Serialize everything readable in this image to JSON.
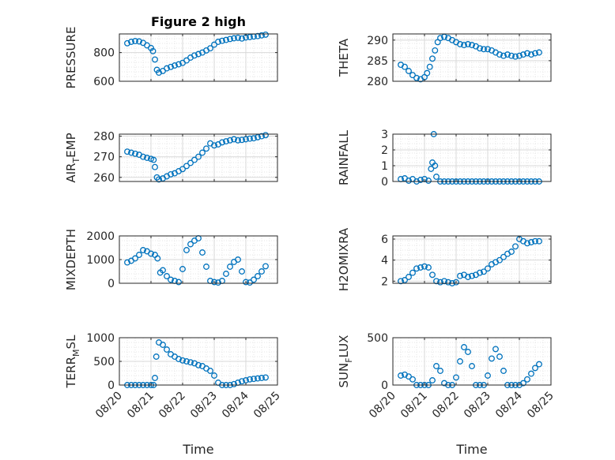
{
  "figure_title": "Figure 2 high",
  "colors": {
    "marker": "#0072BD",
    "axis": "#262626",
    "grid": "#d9d9d9"
  },
  "chart_data": [
    {
      "type": "scatter",
      "title": "Figure 2 high",
      "ylabel": "PRESSURE",
      "xlim": [
        "08/20",
        "08/25"
      ],
      "ylim": [
        600,
        930
      ],
      "yticks": [
        600,
        800
      ],
      "xtick_labels": [
        "08/20",
        "08/21",
        "08/22",
        "08/23",
        "08/24",
        "08/25"
      ],
      "show_xticklabels": false,
      "grid": true,
      "x": [
        "08/20 06:00",
        "08/20 09:00",
        "08/20 12:00",
        "08/20 15:00",
        "08/20 18:00",
        "08/20 21:00",
        "08/21 00:00",
        "08/21 01:30",
        "08/21 03:00",
        "08/21 04:30",
        "08/21 06:00",
        "08/21 09:00",
        "08/21 12:00",
        "08/21 15:00",
        "08/21 18:00",
        "08/21 21:00",
        "08/22 00:00",
        "08/22 03:00",
        "08/22 06:00",
        "08/22 09:00",
        "08/22 12:00",
        "08/22 15:00",
        "08/22 18:00",
        "08/22 21:00",
        "08/23 00:00",
        "08/23 03:00",
        "08/23 06:00",
        "08/23 09:00",
        "08/23 12:00",
        "08/23 15:00",
        "08/23 18:00",
        "08/23 21:00",
        "08/24 00:00",
        "08/24 03:00",
        "08/24 06:00",
        "08/24 09:00",
        "08/24 12:00",
        "08/24 15:00"
      ],
      "values": [
        865,
        875,
        880,
        878,
        868,
        850,
        832,
        810,
        752,
        680,
        660,
        672,
        690,
        700,
        710,
        718,
        728,
        745,
        765,
        780,
        790,
        800,
        815,
        830,
        855,
        875,
        882,
        888,
        895,
        900,
        903,
        898,
        905,
        908,
        912,
        915,
        920,
        925
      ]
    },
    {
      "type": "scatter",
      "ylabel": "THETA",
      "xlim": [
        "08/20",
        "08/25"
      ],
      "ylim": [
        280,
        291.5
      ],
      "yticks": [
        280,
        285,
        290
      ],
      "xtick_labels": [
        "08/20",
        "08/21",
        "08/22",
        "08/23",
        "08/24",
        "08/25"
      ],
      "show_xticklabels": false,
      "grid": true,
      "x": [
        "08/20 06:00",
        "08/20 09:00",
        "08/20 12:00",
        "08/20 15:00",
        "08/20 18:00",
        "08/20 21:00",
        "08/21 00:00",
        "08/21 02:00",
        "08/21 04:00",
        "08/21 06:00",
        "08/21 08:00",
        "08/21 10:00",
        "08/21 12:00",
        "08/21 15:00",
        "08/21 18:00",
        "08/21 21:00",
        "08/22 00:00",
        "08/22 03:00",
        "08/22 06:00",
        "08/22 09:00",
        "08/22 12:00",
        "08/22 15:00",
        "08/22 18:00",
        "08/22 21:00",
        "08/23 00:00",
        "08/23 03:00",
        "08/23 06:00",
        "08/23 09:00",
        "08/23 12:00",
        "08/23 15:00",
        "08/23 18:00",
        "08/23 21:00",
        "08/24 00:00",
        "08/24 03:00",
        "08/24 06:00",
        "08/24 09:00",
        "08/24 12:00",
        "08/24 15:00"
      ],
      "values": [
        284,
        283.5,
        282.5,
        281.5,
        280.8,
        280.5,
        281,
        282,
        283.5,
        285.5,
        287.5,
        289.5,
        290.5,
        290.8,
        290.5,
        290,
        289.5,
        289,
        288.8,
        289,
        288.8,
        288.5,
        288,
        287.8,
        287.8,
        287.5,
        287,
        286.5,
        286.2,
        286.5,
        286.2,
        286,
        286.2,
        286.5,
        286.8,
        286.5,
        286.8,
        287
      ]
    },
    {
      "type": "scatter",
      "ylabel": "AIR_TEMP",
      "ylabel_display": {
        "base": "AIR",
        "sub": "T",
        "rest": "EMP"
      },
      "xlim": [
        "08/20",
        "08/25"
      ],
      "ylim": [
        258,
        281
      ],
      "yticks": [
        260,
        270,
        280
      ],
      "xtick_labels": [
        "08/20",
        "08/21",
        "08/22",
        "08/23",
        "08/24",
        "08/25"
      ],
      "show_xticklabels": false,
      "grid": true,
      "x": [
        "08/20 06:00",
        "08/20 09:00",
        "08/20 12:00",
        "08/20 15:00",
        "08/20 18:00",
        "08/20 21:00",
        "08/21 00:00",
        "08/21 02:00",
        "08/21 03:00",
        "08/21 04:30",
        "08/21 06:00",
        "08/21 09:00",
        "08/21 12:00",
        "08/21 15:00",
        "08/21 18:00",
        "08/21 21:00",
        "08/22 00:00",
        "08/22 03:00",
        "08/22 06:00",
        "08/22 09:00",
        "08/22 12:00",
        "08/22 15:00",
        "08/22 18:00",
        "08/22 21:00",
        "08/23 00:00",
        "08/23 03:00",
        "08/23 06:00",
        "08/23 09:00",
        "08/23 12:00",
        "08/23 15:00",
        "08/23 18:00",
        "08/23 21:00",
        "08/24 00:00",
        "08/24 03:00",
        "08/24 06:00",
        "08/24 09:00",
        "08/24 12:00",
        "08/24 15:00"
      ],
      "values": [
        272.5,
        272,
        271.5,
        271,
        270,
        269.5,
        269,
        268.5,
        265,
        260,
        259,
        259.5,
        260.5,
        261.5,
        262,
        263,
        264,
        265.5,
        267,
        268.5,
        270,
        272,
        274,
        276.5,
        275.5,
        276,
        277,
        277.5,
        278,
        278.5,
        278,
        278.2,
        278.5,
        278.8,
        279,
        279.5,
        280,
        280.5
      ]
    },
    {
      "type": "scatter",
      "ylabel": "RAINFALL",
      "xlim": [
        "08/20",
        "08/25"
      ],
      "ylim": [
        0,
        3
      ],
      "yticks": [
        0,
        1,
        2,
        3
      ],
      "xtick_labels": [
        "08/20",
        "08/21",
        "08/22",
        "08/23",
        "08/24",
        "08/25"
      ],
      "show_xticklabels": false,
      "grid": true,
      "x": [
        "08/20 06:00",
        "08/20 09:00",
        "08/20 12:00",
        "08/20 15:00",
        "08/20 18:00",
        "08/20 21:00",
        "08/21 00:00",
        "08/21 03:00",
        "08/21 05:00",
        "08/21 06:00",
        "08/21 07:00",
        "08/21 08:00",
        "08/21 09:00",
        "08/21 12:00",
        "08/21 15:00",
        "08/21 18:00",
        "08/21 21:00",
        "08/22 00:00",
        "08/22 03:00",
        "08/22 06:00",
        "08/22 09:00",
        "08/22 12:00",
        "08/22 15:00",
        "08/22 18:00",
        "08/22 21:00",
        "08/23 00:00",
        "08/23 03:00",
        "08/23 06:00",
        "08/23 09:00",
        "08/23 12:00",
        "08/23 15:00",
        "08/23 18:00",
        "08/23 21:00",
        "08/24 00:00",
        "08/24 03:00",
        "08/24 06:00",
        "08/24 09:00",
        "08/24 12:00",
        "08/24 15:00"
      ],
      "values": [
        0.15,
        0.2,
        0.05,
        0.15,
        0,
        0.1,
        0.15,
        0.05,
        0.8,
        1.2,
        3.0,
        1.0,
        0.3,
        0,
        0,
        0,
        0,
        0,
        0,
        0,
        0,
        0,
        0,
        0,
        0,
        0,
        0,
        0,
        0,
        0,
        0,
        0,
        0,
        0,
        0,
        0,
        0,
        0,
        0
      ]
    },
    {
      "type": "scatter",
      "ylabel": "MIXDEPTH",
      "xlim": [
        "08/20",
        "08/25"
      ],
      "ylim": [
        0,
        2000
      ],
      "yticks": [
        0,
        1000,
        2000
      ],
      "xtick_labels": [
        "08/20",
        "08/21",
        "08/22",
        "08/23",
        "08/24",
        "08/25"
      ],
      "show_xticklabels": false,
      "grid": true,
      "x": [
        "08/20 06:00",
        "08/20 09:00",
        "08/20 12:00",
        "08/20 15:00",
        "08/20 18:00",
        "08/20 21:00",
        "08/21 00:00",
        "08/21 03:00",
        "08/21 05:00",
        "08/21 07:00",
        "08/21 09:00",
        "08/21 12:00",
        "08/21 15:00",
        "08/21 18:00",
        "08/21 21:00",
        "08/22 00:00",
        "08/22 03:00",
        "08/22 06:00",
        "08/22 09:00",
        "08/22 12:00",
        "08/22 15:00",
        "08/22 18:00",
        "08/22 21:00",
        "08/23 00:00",
        "08/23 03:00",
        "08/23 06:00",
        "08/23 09:00",
        "08/23 12:00",
        "08/23 15:00",
        "08/23 18:00",
        "08/23 21:00",
        "08/24 00:00",
        "08/24 03:00",
        "08/24 06:00",
        "08/24 09:00",
        "08/24 12:00",
        "08/24 15:00"
      ],
      "values": [
        880,
        950,
        1050,
        1200,
        1400,
        1350,
        1250,
        1200,
        1050,
        450,
        550,
        300,
        150,
        100,
        50,
        600,
        1400,
        1650,
        1800,
        1900,
        1300,
        700,
        100,
        50,
        30,
        100,
        400,
        700,
        900,
        1000,
        500,
        50,
        30,
        150,
        300,
        500,
        720
      ]
    },
    {
      "type": "scatter",
      "ylabel": "H2OMIXRA",
      "xlim": [
        "08/20",
        "08/25"
      ],
      "ylim": [
        1.8,
        6.3
      ],
      "yticks": [
        2,
        4,
        6
      ],
      "xtick_labels": [
        "08/20",
        "08/21",
        "08/22",
        "08/23",
        "08/24",
        "08/25"
      ],
      "show_xticklabels": false,
      "grid": true,
      "x": [
        "08/20 06:00",
        "08/20 09:00",
        "08/20 12:00",
        "08/20 15:00",
        "08/20 18:00",
        "08/20 21:00",
        "08/21 00:00",
        "08/21 03:00",
        "08/21 06:00",
        "08/21 09:00",
        "08/21 12:00",
        "08/21 15:00",
        "08/21 18:00",
        "08/21 21:00",
        "08/22 00:00",
        "08/22 03:00",
        "08/22 06:00",
        "08/22 09:00",
        "08/22 12:00",
        "08/22 15:00",
        "08/22 18:00",
        "08/22 21:00",
        "08/23 00:00",
        "08/23 03:00",
        "08/23 06:00",
        "08/23 09:00",
        "08/23 12:00",
        "08/23 15:00",
        "08/23 18:00",
        "08/23 21:00",
        "08/24 00:00",
        "08/24 03:00",
        "08/24 06:00",
        "08/24 09:00",
        "08/24 12:00",
        "08/24 15:00"
      ],
      "values": [
        2.0,
        2.1,
        2.4,
        2.8,
        3.2,
        3.3,
        3.4,
        3.3,
        2.6,
        2.0,
        1.9,
        2.0,
        1.9,
        1.8,
        1.9,
        2.5,
        2.6,
        2.4,
        2.5,
        2.6,
        2.8,
        2.9,
        3.2,
        3.6,
        3.8,
        4.0,
        4.3,
        4.6,
        4.8,
        5.3,
        6.0,
        5.8,
        5.6,
        5.7,
        5.8,
        5.8
      ]
    },
    {
      "type": "scatter",
      "ylabel": "TERR_MSL",
      "ylabel_display": {
        "base": "TERR",
        "sub": "M",
        "rest": "SL"
      },
      "xlabel": "Time",
      "xlim": [
        "08/20",
        "08/25"
      ],
      "ylim": [
        0,
        1000
      ],
      "yticks": [
        0,
        500,
        1000
      ],
      "xtick_labels": [
        "08/20",
        "08/21",
        "08/22",
        "08/23",
        "08/24",
        "08/25"
      ],
      "show_xticklabels": true,
      "grid": true,
      "x": [
        "08/20 06:00",
        "08/20 09:00",
        "08/20 12:00",
        "08/20 15:00",
        "08/20 18:00",
        "08/20 21:00",
        "08/21 00:00",
        "08/21 02:00",
        "08/21 03:00",
        "08/21 04:00",
        "08/21 06:00",
        "08/21 09:00",
        "08/21 12:00",
        "08/21 15:00",
        "08/21 18:00",
        "08/21 21:00",
        "08/22 00:00",
        "08/22 03:00",
        "08/22 06:00",
        "08/22 09:00",
        "08/22 12:00",
        "08/22 15:00",
        "08/22 18:00",
        "08/22 21:00",
        "08/23 00:00",
        "08/23 03:00",
        "08/23 06:00",
        "08/23 09:00",
        "08/23 12:00",
        "08/23 15:00",
        "08/23 18:00",
        "08/23 21:00",
        "08/24 00:00",
        "08/24 03:00",
        "08/24 06:00",
        "08/24 09:00",
        "08/24 12:00",
        "08/24 15:00"
      ],
      "values": [
        0,
        0,
        0,
        0,
        0,
        0,
        0,
        0,
        150,
        600,
        900,
        850,
        750,
        650,
        600,
        550,
        520,
        500,
        480,
        460,
        420,
        400,
        350,
        300,
        200,
        50,
        0,
        0,
        0,
        20,
        50,
        80,
        100,
        120,
        130,
        140,
        150,
        160
      ]
    },
    {
      "type": "scatter",
      "ylabel": "SUN_FLUX",
      "ylabel_display": {
        "base": "SUN",
        "sub": "F",
        "rest": "LUX"
      },
      "xlabel": "Time",
      "xlim": [
        "08/20",
        "08/25"
      ],
      "ylim": [
        0,
        500
      ],
      "yticks": [
        0,
        500
      ],
      "xtick_labels": [
        "08/20",
        "08/21",
        "08/22",
        "08/23",
        "08/24",
        "08/25"
      ],
      "show_xticklabels": true,
      "grid": true,
      "x": [
        "08/20 06:00",
        "08/20 09:00",
        "08/20 12:00",
        "08/20 15:00",
        "08/20 18:00",
        "08/20 21:00",
        "08/21 00:00",
        "08/21 03:00",
        "08/21 06:00",
        "08/21 09:00",
        "08/21 12:00",
        "08/21 15:00",
        "08/21 18:00",
        "08/21 21:00",
        "08/22 00:00",
        "08/22 03:00",
        "08/22 06:00",
        "08/22 09:00",
        "08/22 12:00",
        "08/22 15:00",
        "08/22 18:00",
        "08/22 21:00",
        "08/23 00:00",
        "08/23 03:00",
        "08/23 06:00",
        "08/23 09:00",
        "08/23 12:00",
        "08/23 15:00",
        "08/23 18:00",
        "08/23 21:00",
        "08/24 00:00",
        "08/24 03:00",
        "08/24 06:00",
        "08/24 09:00",
        "08/24 12:00",
        "08/24 15:00"
      ],
      "values": [
        100,
        110,
        90,
        60,
        0,
        0,
        0,
        0,
        50,
        200,
        150,
        20,
        0,
        0,
        80,
        250,
        400,
        350,
        200,
        0,
        0,
        0,
        100,
        280,
        380,
        300,
        150,
        0,
        0,
        0,
        0,
        20,
        60,
        120,
        180,
        220
      ]
    }
  ]
}
